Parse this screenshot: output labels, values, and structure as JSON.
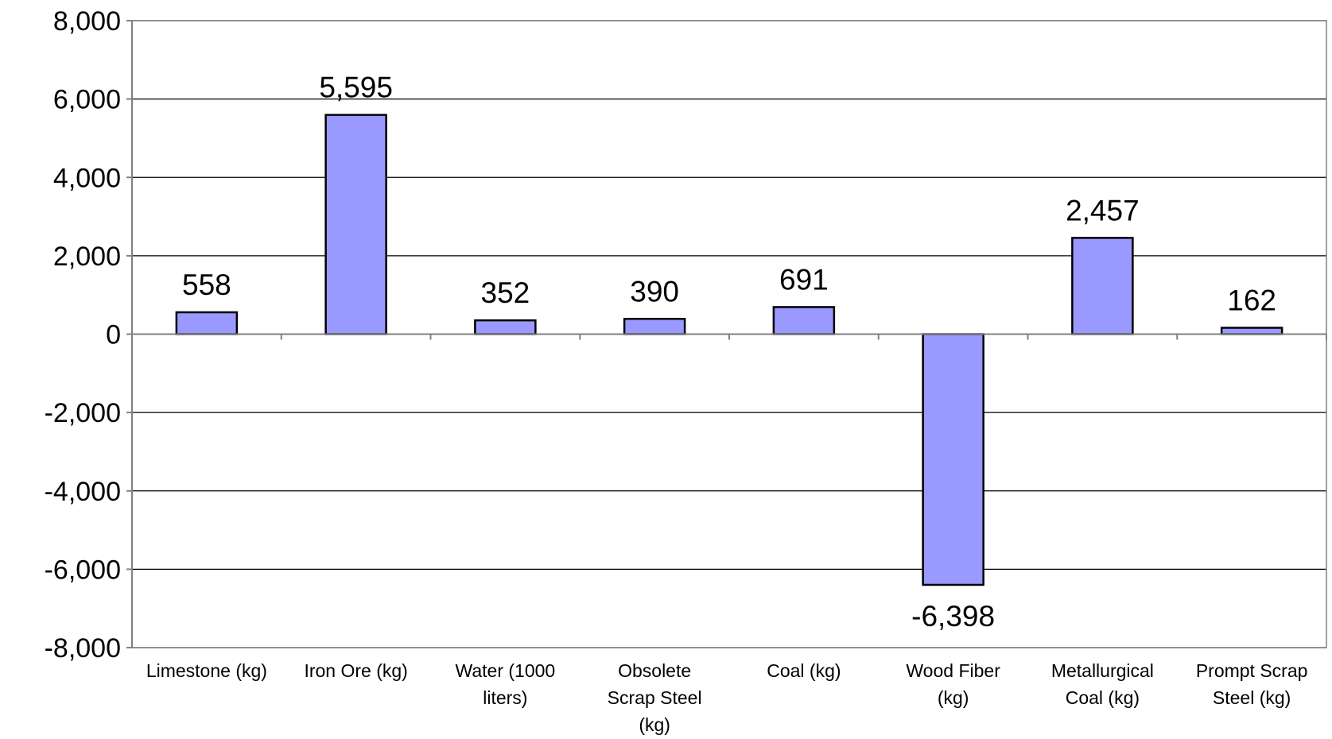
{
  "chart_data": {
    "type": "bar",
    "categories": [
      "Limestone (kg)",
      "Iron Ore (kg)",
      "Water (1000 liters)",
      "Obsolete Scrap Steel (kg)",
      "Coal (kg)",
      "Wood Fiber (kg)",
      "Metallurgical Coal (kg)",
      "Prompt Scrap Steel (kg)"
    ],
    "category_label_lines": [
      [
        "Limestone (kg)"
      ],
      [
        "Iron Ore (kg)"
      ],
      [
        "Water (1000",
        "liters)"
      ],
      [
        "Obsolete",
        "Scrap Steel",
        "(kg)"
      ],
      [
        "Coal (kg)"
      ],
      [
        "Wood Fiber",
        "(kg)"
      ],
      [
        "Metallurgical",
        "Coal (kg)"
      ],
      [
        "Prompt Scrap",
        "Steel (kg)"
      ]
    ],
    "values": [
      558,
      5595,
      352,
      390,
      691,
      -6398,
      2457,
      162
    ],
    "data_labels": [
      "558",
      "5,595",
      "352",
      "390",
      "691",
      "-6,398",
      "2,457",
      "162"
    ],
    "yticks": [
      8000,
      6000,
      4000,
      2000,
      0,
      -2000,
      -4000,
      -6000,
      -8000
    ],
    "ytick_labels": [
      "8,000",
      "6,000",
      "4,000",
      "2,000",
      "0",
      "-2,000",
      "-4,000",
      "-6,000",
      "-8,000"
    ],
    "ylim": [
      -8000,
      8000
    ],
    "grid": true,
    "legend": "none",
    "title": "",
    "xlabel": "",
    "ylabel": "",
    "colors": {
      "bar_fill": "#9999ff",
      "bar_stroke": "#000000",
      "grid": "#000000",
      "axis": "#808080"
    }
  }
}
